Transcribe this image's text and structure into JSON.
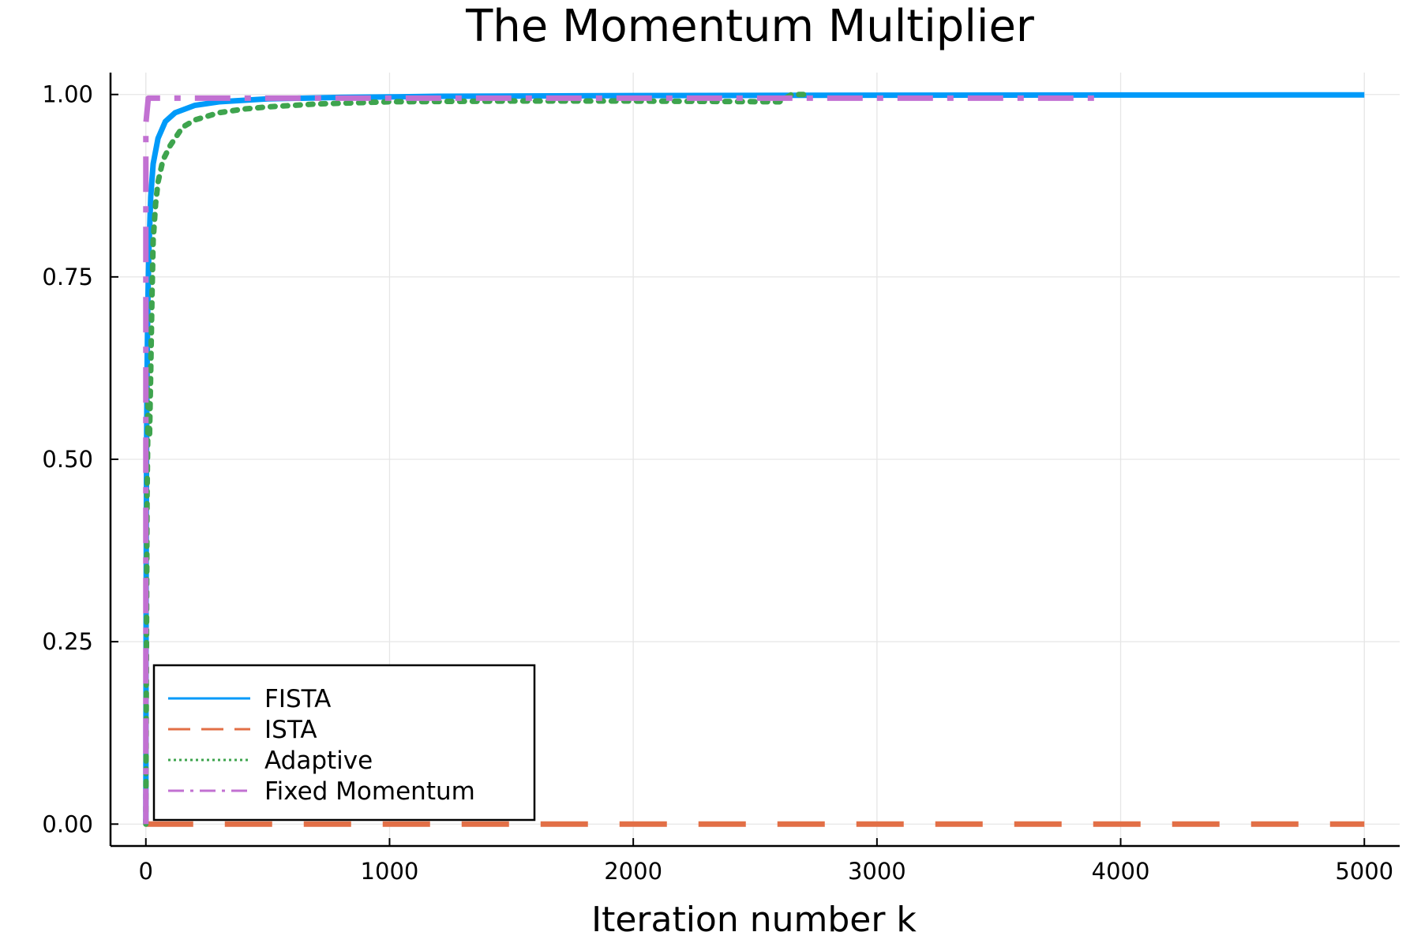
{
  "chart_data": {
    "type": "line",
    "title": "The Momentum Multiplier",
    "xlabel": "Iteration number k",
    "ylabel": "",
    "xlim": [
      -145,
      5145
    ],
    "ylim": [
      -0.03,
      1.03
    ],
    "x_ticks": [
      0,
      1000,
      2000,
      3000,
      4000,
      5000
    ],
    "x_tick_labels": [
      "0",
      "1000",
      "2000",
      "3000",
      "4000",
      "5000"
    ],
    "y_ticks": [
      0,
      0.25,
      0.5,
      0.75,
      1.0
    ],
    "y_tick_labels": [
      "0.00",
      "0.25",
      "0.50",
      "0.75",
      "1.00"
    ],
    "grid": true,
    "legend_position": "bottom-left",
    "series": [
      {
        "name": "FISTA",
        "color": "#009af9",
        "style": "solid",
        "x": [
          0,
          1,
          2,
          3,
          5,
          8,
          12,
          20,
          30,
          50,
          80,
          120,
          200,
          300,
          500,
          800,
          1200,
          2000,
          3000,
          4000,
          5000
        ],
        "y": [
          0,
          0.28,
          0.43,
          0.52,
          0.62,
          0.71,
          0.78,
          0.86,
          0.905,
          0.94,
          0.963,
          0.975,
          0.985,
          0.99,
          0.994,
          0.996,
          0.9975,
          0.9985,
          0.999,
          0.9993,
          0.9995
        ]
      },
      {
        "name": "ISTA",
        "color": "#e26f46",
        "style": "dashed",
        "x": [
          0,
          5000
        ],
        "y": [
          0,
          0
        ]
      },
      {
        "name": "Adaptive",
        "color": "#3ea44e",
        "style": "dotted",
        "x": [
          0,
          2,
          5,
          10,
          15,
          20,
          25,
          30,
          40,
          50,
          70,
          100,
          150,
          200,
          300,
          400,
          500,
          700,
          1000,
          1500,
          2000,
          2600,
          2650,
          2700
        ],
        "y": [
          0,
          0.2,
          0.45,
          0.6,
          0.53,
          0.62,
          0.72,
          0.8,
          0.85,
          0.88,
          0.91,
          0.93,
          0.955,
          0.965,
          0.975,
          0.98,
          0.983,
          0.987,
          0.99,
          0.991,
          0.991,
          0.99,
          1.0,
          1.0
        ]
      },
      {
        "name": "Fixed Momentum",
        "color": "#c271d2",
        "style": "dashdot",
        "x": [
          0,
          0,
          10,
          30,
          100,
          250,
          1000,
          2000,
          3000,
          3900
        ],
        "y": [
          0,
          0.96,
          0.995,
          0.995,
          0.995,
          0.995,
          0.995,
          0.995,
          0.995,
          0.995
        ]
      }
    ]
  }
}
